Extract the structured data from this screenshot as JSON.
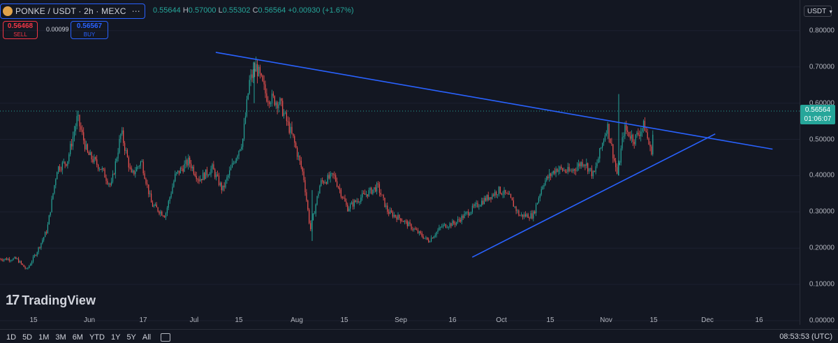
{
  "header": {
    "symbol": "PONKE / USDT · 2h · MEXC",
    "ohlc": [
      {
        "k": "",
        "v": "0.55644"
      },
      {
        "k": "H",
        "v": "0.57000"
      },
      {
        "k": "L",
        "v": "0.55302"
      },
      {
        "k": "C",
        "v": "0.56564"
      },
      {
        "k": "",
        "v": "+0.00930 (+1.67%)"
      }
    ]
  },
  "trade": {
    "sell_price": "0.56468",
    "sell_label": "SELL",
    "spread": "0.00099",
    "buy_price": "0.56567",
    "buy_label": "BUY"
  },
  "currency": "USDT",
  "last_price": {
    "price": "0.56564",
    "countdown": "01:06:07"
  },
  "price_axis": [
    "0.80000",
    "0.70000",
    "0.60000",
    "0.50000",
    "0.40000",
    "0.30000",
    "0.20000",
    "0.10000",
    "0.00000"
  ],
  "time_axis": [
    "15",
    "Jun",
    "17",
    "Jul",
    "15",
    "Aug",
    "15",
    "Sep",
    "16",
    "Oct",
    "15",
    "Nov",
    "15",
    "Dec",
    "16"
  ],
  "brand": "TradingView",
  "ranges": [
    "1D",
    "5D",
    "1M",
    "3M",
    "6M",
    "YTD",
    "1Y",
    "5Y",
    "All"
  ],
  "clock": "08:53:53 (UTC)",
  "colors": {
    "up": "#26a69a",
    "down": "#ef5350",
    "trendline": "#2962ff",
    "bg": "#131722"
  },
  "chart_data": {
    "type": "candlestick",
    "ylim": [
      0.0,
      0.8
    ],
    "x_labels": [
      "15",
      "Jun",
      "17",
      "Jul",
      "15",
      "Aug",
      "15",
      "Sep",
      "16",
      "Oct",
      "15",
      "Nov",
      "15",
      "Dec",
      "16"
    ],
    "price_path": [
      {
        "t": "May 10",
        "close": 0.17
      },
      {
        "t": "May 13",
        "close": 0.14
      },
      {
        "t": "May 16",
        "close": 0.19
      },
      {
        "t": "May 19",
        "close": 0.25
      },
      {
        "t": "May 22",
        "close": 0.42
      },
      {
        "t": "May 25",
        "close": 0.44
      },
      {
        "t": "May 28",
        "close": 0.56
      },
      {
        "t": "May 31",
        "close": 0.46
      },
      {
        "t": "Jun 04",
        "close": 0.42
      },
      {
        "t": "Jun 07",
        "close": 0.37
      },
      {
        "t": "Jun 10",
        "close": 0.52
      },
      {
        "t": "Jun 13",
        "close": 0.4
      },
      {
        "t": "Jun 16",
        "close": 0.44
      },
      {
        "t": "Jun 19",
        "close": 0.32
      },
      {
        "t": "Jun 23",
        "close": 0.29
      },
      {
        "t": "Jun 26",
        "close": 0.4
      },
      {
        "t": "Jun 30",
        "close": 0.44
      },
      {
        "t": "Jul 03",
        "close": 0.39
      },
      {
        "t": "Jul 07",
        "close": 0.42
      },
      {
        "t": "Jul 10",
        "close": 0.36
      },
      {
        "t": "Jul 13",
        "close": 0.43
      },
      {
        "t": "Jul 16",
        "close": 0.5
      },
      {
        "t": "Jul 18",
        "close": 0.66
      },
      {
        "t": "Jul 20",
        "close": 0.7
      },
      {
        "t": "Jul 23",
        "close": 0.62
      },
      {
        "t": "Jul 27",
        "close": 0.6
      },
      {
        "t": "Jul 31",
        "close": 0.5
      },
      {
        "t": "Aug 03",
        "close": 0.4
      },
      {
        "t": "Aug 05",
        "close": 0.25
      },
      {
        "t": "Aug 08",
        "close": 0.38
      },
      {
        "t": "Aug 12",
        "close": 0.4
      },
      {
        "t": "Aug 16",
        "close": 0.31
      },
      {
        "t": "Aug 20",
        "close": 0.34
      },
      {
        "t": "Aug 25",
        "close": 0.37
      },
      {
        "t": "Aug 28",
        "close": 0.3
      },
      {
        "t": "Sep 01",
        "close": 0.28
      },
      {
        "t": "Sep 05",
        "close": 0.25
      },
      {
        "t": "Sep 09",
        "close": 0.22
      },
      {
        "t": "Sep 13",
        "close": 0.26
      },
      {
        "t": "Sep 17",
        "close": 0.27
      },
      {
        "t": "Sep 21",
        "close": 0.3
      },
      {
        "t": "Sep 25",
        "close": 0.33
      },
      {
        "t": "Sep 30",
        "close": 0.36
      },
      {
        "t": "Oct 03",
        "close": 0.34
      },
      {
        "t": "Oct 06",
        "close": 0.29
      },
      {
        "t": "Oct 10",
        "close": 0.29
      },
      {
        "t": "Oct 13",
        "close": 0.38
      },
      {
        "t": "Oct 17",
        "close": 0.42
      },
      {
        "t": "Oct 21",
        "close": 0.41
      },
      {
        "t": "Oct 25",
        "close": 0.44
      },
      {
        "t": "Oct 28",
        "close": 0.4
      },
      {
        "t": "Nov 01",
        "close": 0.54
      },
      {
        "t": "Nov 04",
        "close": 0.4
      },
      {
        "t": "Nov 06",
        "close": 0.53
      },
      {
        "t": "Nov 09",
        "close": 0.5
      },
      {
        "t": "Nov 12",
        "close": 0.54
      },
      {
        "t": "Nov 14",
        "close": 0.46
      },
      {
        "t": "Nov 15",
        "close": 0.56564
      }
    ],
    "trendlines": [
      {
        "from": {
          "t": "Jul 08",
          "price": 0.74
        },
        "to": {
          "t": "Dec 20",
          "price": 0.473
        }
      },
      {
        "from": {
          "t": "Sep 22",
          "price": 0.175
        },
        "to": {
          "t": "Dec 03",
          "price": 0.515
        }
      }
    ]
  }
}
